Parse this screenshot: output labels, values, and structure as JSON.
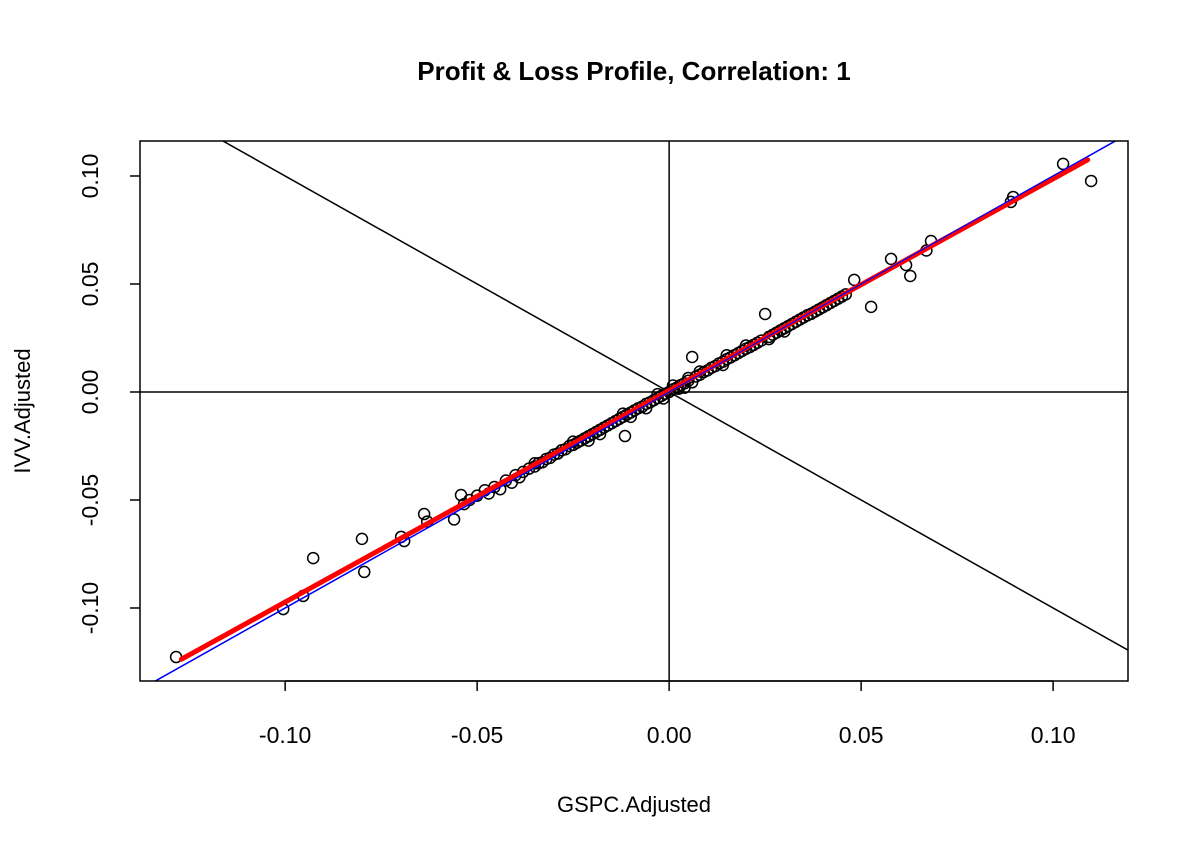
{
  "chart_data": {
    "type": "scatter",
    "title": "Profit & Loss Profile, Correlation: 1",
    "xlabel": "GSPC.Adjusted",
    "ylabel": "IVV.Adjusted",
    "xlim": [
      -0.1378,
      0.1195
    ],
    "ylim": [
      -0.1338,
      0.1162
    ],
    "grid": false,
    "x_ticks": [
      -0.1,
      -0.05,
      0.0,
      0.05,
      0.1
    ],
    "x_tick_labels": [
      "-0.10",
      "-0.05",
      "0.00",
      "0.05",
      "0.10"
    ],
    "y_ticks": [
      -0.1,
      -0.05,
      0.0,
      0.05,
      0.1
    ],
    "y_tick_labels": [
      "-0.10",
      "-0.05",
      "0.00",
      "0.05",
      "0.10"
    ],
    "reference_lines": [
      {
        "kind": "horizontal",
        "y": 0,
        "color": "#000000"
      },
      {
        "kind": "vertical",
        "x": 0,
        "color": "#000000"
      },
      {
        "kind": "abline",
        "intercept": 0,
        "slope": -1,
        "color": "#000000"
      },
      {
        "kind": "abline",
        "intercept": 0,
        "slope": 1,
        "color": "#0000ff"
      }
    ],
    "fit_line": {
      "color": "#ff0000",
      "x": [
        -0.127,
        0.109
      ],
      "y": [
        -0.1237,
        0.1075
      ]
    },
    "points": {
      "x": [
        -0.1284,
        -0.1005,
        -0.0953,
        -0.0927,
        -0.08,
        -0.0794,
        -0.0698,
        -0.069,
        -0.0638,
        -0.063,
        -0.056,
        -0.0542,
        -0.0534,
        -0.052,
        -0.05,
        -0.048,
        -0.047,
        -0.0455,
        -0.044,
        -0.0425,
        -0.041,
        -0.04,
        -0.039,
        -0.038,
        -0.0365,
        -0.035,
        -0.034,
        -0.033,
        -0.032,
        -0.031,
        -0.03,
        -0.029,
        -0.028,
        -0.027,
        -0.026,
        -0.025,
        -0.024,
        -0.023,
        -0.022,
        -0.021,
        -0.02,
        -0.019,
        -0.018,
        -0.017,
        -0.016,
        -0.015,
        -0.014,
        -0.013,
        -0.012,
        -0.0115,
        -0.011,
        -0.01,
        -0.009,
        -0.008,
        -0.007,
        -0.006,
        -0.005,
        -0.004,
        -0.003,
        -0.002,
        -0.001,
        0.0,
        0.001,
        0.002,
        0.003,
        0.004,
        0.005,
        0.006,
        0.007,
        0.008,
        0.009,
        0.01,
        0.011,
        0.012,
        0.013,
        0.014,
        0.015,
        0.016,
        0.017,
        0.018,
        0.019,
        0.02,
        0.021,
        0.022,
        0.023,
        0.024,
        0.025,
        0.026,
        0.027,
        0.028,
        0.029,
        0.03,
        0.031,
        0.032,
        0.033,
        0.034,
        0.035,
        0.036,
        0.037,
        0.038,
        0.039,
        0.04,
        0.041,
        0.042,
        0.043,
        0.044,
        0.045,
        0.046,
        0.0482,
        0.0526,
        0.0578,
        0.0617,
        0.0628,
        0.0682,
        0.067,
        0.0896,
        0.089,
        0.1026,
        0.1099,
        -0.025,
        -0.018,
        -0.012,
        -0.006,
        -0.003,
        0.001,
        0.004,
        0.008,
        0.014,
        0.02,
        0.026,
        0.006,
        0.015,
        -0.021,
        -0.035,
        0.03,
        -0.01,
        0.005,
        -0.0015,
        0.0025
      ],
      "y": [
        -0.1227,
        -0.1005,
        -0.0944,
        -0.0769,
        -0.068,
        -0.0833,
        -0.0671,
        -0.069,
        -0.0565,
        -0.06,
        -0.059,
        -0.0477,
        -0.0519,
        -0.05,
        -0.048,
        -0.0455,
        -0.047,
        -0.044,
        -0.045,
        -0.041,
        -0.042,
        -0.0385,
        -0.0395,
        -0.037,
        -0.0355,
        -0.0345,
        -0.033,
        -0.0325,
        -0.031,
        -0.0305,
        -0.029,
        -0.0285,
        -0.027,
        -0.0265,
        -0.025,
        -0.0245,
        -0.0235,
        -0.0225,
        -0.0215,
        -0.0205,
        -0.0195,
        -0.0185,
        -0.0175,
        -0.0165,
        -0.0155,
        -0.0145,
        -0.0135,
        -0.0125,
        -0.0115,
        -0.0204,
        -0.0105,
        -0.0095,
        -0.0085,
        -0.0075,
        -0.0068,
        -0.0055,
        -0.0048,
        -0.0038,
        -0.0028,
        -0.0018,
        -0.0008,
        0.0,
        0.0012,
        0.002,
        0.0032,
        0.004,
        0.0052,
        0.0162,
        0.0072,
        0.008,
        0.0092,
        0.01,
        0.0112,
        0.012,
        0.0132,
        0.014,
        0.0152,
        0.016,
        0.017,
        0.018,
        0.019,
        0.02,
        0.0208,
        0.0218,
        0.0228,
        0.0238,
        0.0361,
        0.0255,
        0.0265,
        0.0275,
        0.0285,
        0.0295,
        0.0305,
        0.0315,
        0.0325,
        0.0335,
        0.0345,
        0.0355,
        0.0362,
        0.0372,
        0.0382,
        0.0392,
        0.0402,
        0.0412,
        0.0422,
        0.0432,
        0.0442,
        0.0452,
        0.0519,
        0.0394,
        0.0616,
        0.0588,
        0.0537,
        0.0699,
        0.0655,
        0.0903,
        0.088,
        0.1056,
        0.0977,
        -0.023,
        -0.0195,
        -0.01,
        -0.0075,
        -0.001,
        0.003,
        0.002,
        0.0095,
        0.0125,
        0.0215,
        0.0245,
        0.0045,
        0.017,
        -0.0225,
        -0.033,
        0.028,
        -0.0115,
        0.0065,
        -0.003,
        0.0015
      ]
    }
  }
}
